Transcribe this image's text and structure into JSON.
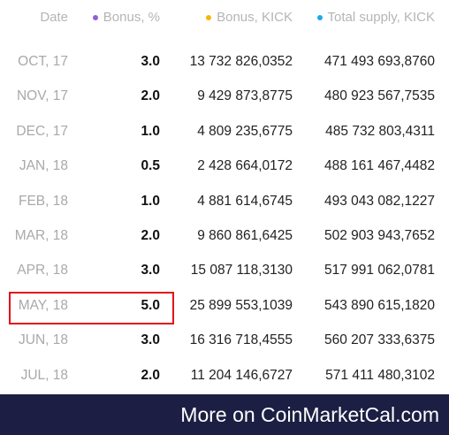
{
  "header": {
    "columns": [
      "Date",
      "Bonus, %",
      "Bonus, KICK",
      "Total supply, KICK"
    ]
  },
  "table": {
    "rows": [
      [
        "OCT, 17",
        "3.0",
        "13 732 826,0352",
        "471 493 693,8760"
      ],
      [
        "NOV, 17",
        "2.0",
        "9 429 873,8775",
        "480 923 567,7535"
      ],
      [
        "DEC, 17",
        "1.0",
        "4 809 235,6775",
        "485 732 803,4311"
      ],
      [
        "JAN, 18",
        "0.5",
        "2 428 664,0172",
        "488 161 467,4482"
      ],
      [
        "FEB, 18",
        "1.0",
        "4 881 614,6745",
        "493 043 082,1227"
      ],
      [
        "MAR, 18",
        "2.0",
        "9 860 861,6425",
        "502 903 943,7652"
      ],
      [
        "APR, 18",
        "3.0",
        "15 087 118,3130",
        "517 991 062,0781"
      ],
      [
        "MAY, 18",
        "5.0",
        "25 899 553,1039",
        "543 890 615,1820"
      ],
      [
        "JUN, 18",
        "3.0",
        "16 316 718,4555",
        "560 207 333,6375"
      ],
      [
        "JUL, 18",
        "2.0",
        "11 204 146,6727",
        "571 411 480,3102"
      ]
    ]
  },
  "footer": {
    "text": "More on CoinMarketCal.com"
  }
}
